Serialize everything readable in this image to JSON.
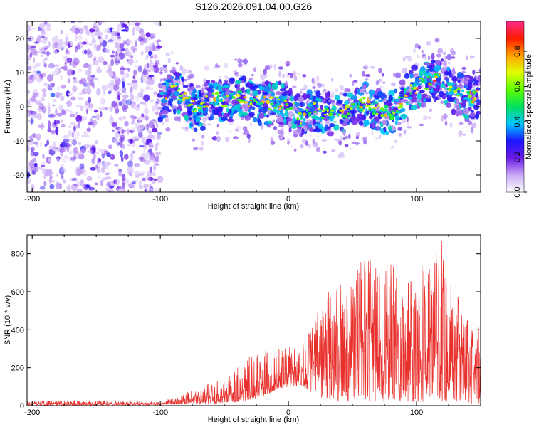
{
  "title": "S126.2026.091.04.00.G26",
  "chart_data": [
    {
      "type": "heatmap",
      "xlabel": "Height of straight line (km)",
      "ylabel": "Frequency (Hz)",
      "xlim": [
        -204,
        150
      ],
      "ylim": [
        -25,
        25
      ],
      "xticks": [
        -200,
        -100,
        0,
        100
      ],
      "xtick_labels": [
        "-200",
        "-100",
        "0",
        "100"
      ],
      "yticks": [
        20,
        10,
        0,
        -10,
        -20
      ],
      "ytick_labels": [
        "20",
        "10",
        "0",
        "-10",
        "-20"
      ],
      "colorbar": {
        "label": "Normalized spectral amplitude",
        "range": [
          0,
          0.97
        ],
        "ticks": [
          0.0,
          0.2,
          0.4,
          0.6,
          0.8
        ],
        "tick_labels": [
          "0.0",
          "0.2",
          "0.4",
          "0.6",
          "0.8"
        ],
        "colormap": [
          "#ffffff",
          "#c9a8f5",
          "#6a1be8",
          "#1a16ff",
          "#00c6ff",
          "#00e060",
          "#5fff00",
          "#e0ff00",
          "#ffa000",
          "#ff1a00",
          "#ff2a8a"
        ]
      },
      "ridge_line": {
        "x": [
          -100,
          -90,
          -80,
          -70,
          -60,
          -50,
          -40,
          -30,
          -20,
          -10,
          0,
          10,
          20,
          30,
          40,
          50,
          60,
          70,
          80,
          90,
          100,
          110,
          120,
          130,
          140,
          150
        ],
        "y": [
          2,
          5,
          2,
          -2,
          3,
          1,
          3,
          2,
          1,
          1,
          1,
          -3,
          -1,
          -2,
          -3,
          0,
          1,
          -1,
          -2,
          3,
          6,
          7,
          8,
          4,
          3,
          3
        ]
      }
    },
    {
      "type": "line",
      "xlabel": "Height of straight line (km)",
      "ylabel": "SNR (10 * v/v)",
      "xlim": [
        -204,
        150
      ],
      "ylim": [
        0,
        900
      ],
      "xticks": [
        -200,
        -100,
        0,
        100
      ],
      "xtick_labels": [
        "-200",
        "-100",
        "0",
        "100"
      ],
      "yticks": [
        0,
        200,
        400,
        600,
        800
      ],
      "ytick_labels": [
        "0",
        "200",
        "400",
        "600",
        "800"
      ],
      "series": [
        {
          "name": "SNR",
          "color": "#e8302c"
        }
      ],
      "envelope": {
        "x": [
          -204,
          -150,
          -100,
          -85,
          -70,
          -60,
          -50,
          -40,
          -30,
          -20,
          -10,
          0,
          10,
          20,
          30,
          40,
          50,
          60,
          70,
          80,
          90,
          100,
          110,
          120,
          130,
          140,
          150
        ],
        "low": [
          3,
          3,
          5,
          8,
          8,
          10,
          15,
          20,
          30,
          50,
          80,
          100,
          110,
          60,
          20,
          20,
          20,
          20,
          20,
          20,
          20,
          20,
          20,
          20,
          20,
          10,
          10
        ],
        "high": [
          25,
          30,
          20,
          60,
          90,
          130,
          140,
          230,
          260,
          290,
          300,
          320,
          330,
          450,
          600,
          650,
          750,
          780,
          800,
          750,
          700,
          780,
          800,
          880,
          600,
          500,
          400
        ]
      }
    }
  ]
}
